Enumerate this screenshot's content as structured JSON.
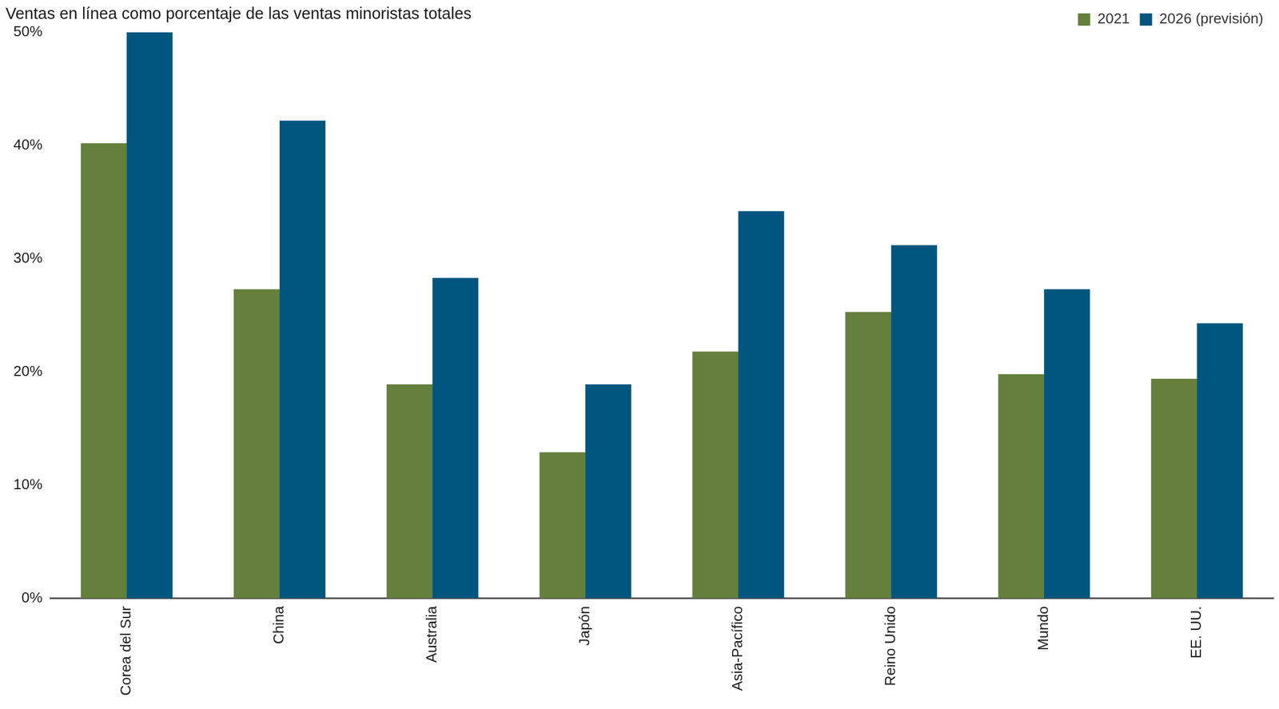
{
  "chart_data": {
    "type": "bar",
    "title": "Ventas en línea como porcentaje de las ventas minoristas totales",
    "categories": [
      "Corea del Sur",
      "China",
      "Australia",
      "Japón",
      "Asia-Pacífico",
      "Reino Unido",
      "Mundo",
      "EE. UU."
    ],
    "series": [
      {
        "name": "2021",
        "color": "#64803c",
        "values": [
          40.2,
          27.3,
          18.9,
          12.9,
          21.8,
          25.3,
          19.8,
          19.4
        ]
      },
      {
        "name": "2026 (previsión)",
        "color": "#00567f",
        "values": [
          50,
          42.2,
          28.3,
          18.9,
          34.2,
          31.2,
          27.3,
          24.3
        ]
      }
    ],
    "ylim": [
      0,
      50
    ],
    "yticks": [
      {
        "value": 0,
        "label": "0%"
      },
      {
        "value": 10,
        "label": "10%"
      },
      {
        "value": 20,
        "label": "20%"
      },
      {
        "value": 30,
        "label": "30%"
      },
      {
        "value": 40,
        "label": "40%"
      },
      {
        "value": 50,
        "label": "50%"
      }
    ],
    "grid": false,
    "legend": "top-right"
  }
}
